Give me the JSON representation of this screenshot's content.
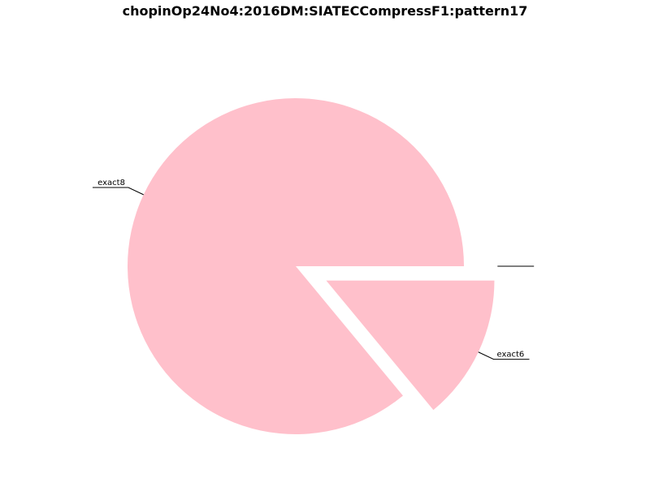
{
  "chart_data": {
    "type": "pie",
    "title": "chopinOp24No4:2016DM:SIATECCompressF1:pattern17",
    "slices": [
      {
        "label": "exact8",
        "value": 86,
        "exploded": false
      },
      {
        "label": "exact6",
        "value": 14,
        "exploded": true
      },
      {
        "label": "",
        "value": 0,
        "exploded": true
      },
      {
        "label": "",
        "value": 0,
        "exploded": true
      }
    ],
    "colors": {
      "slice": "#ffc0cb"
    },
    "legend": "none"
  }
}
